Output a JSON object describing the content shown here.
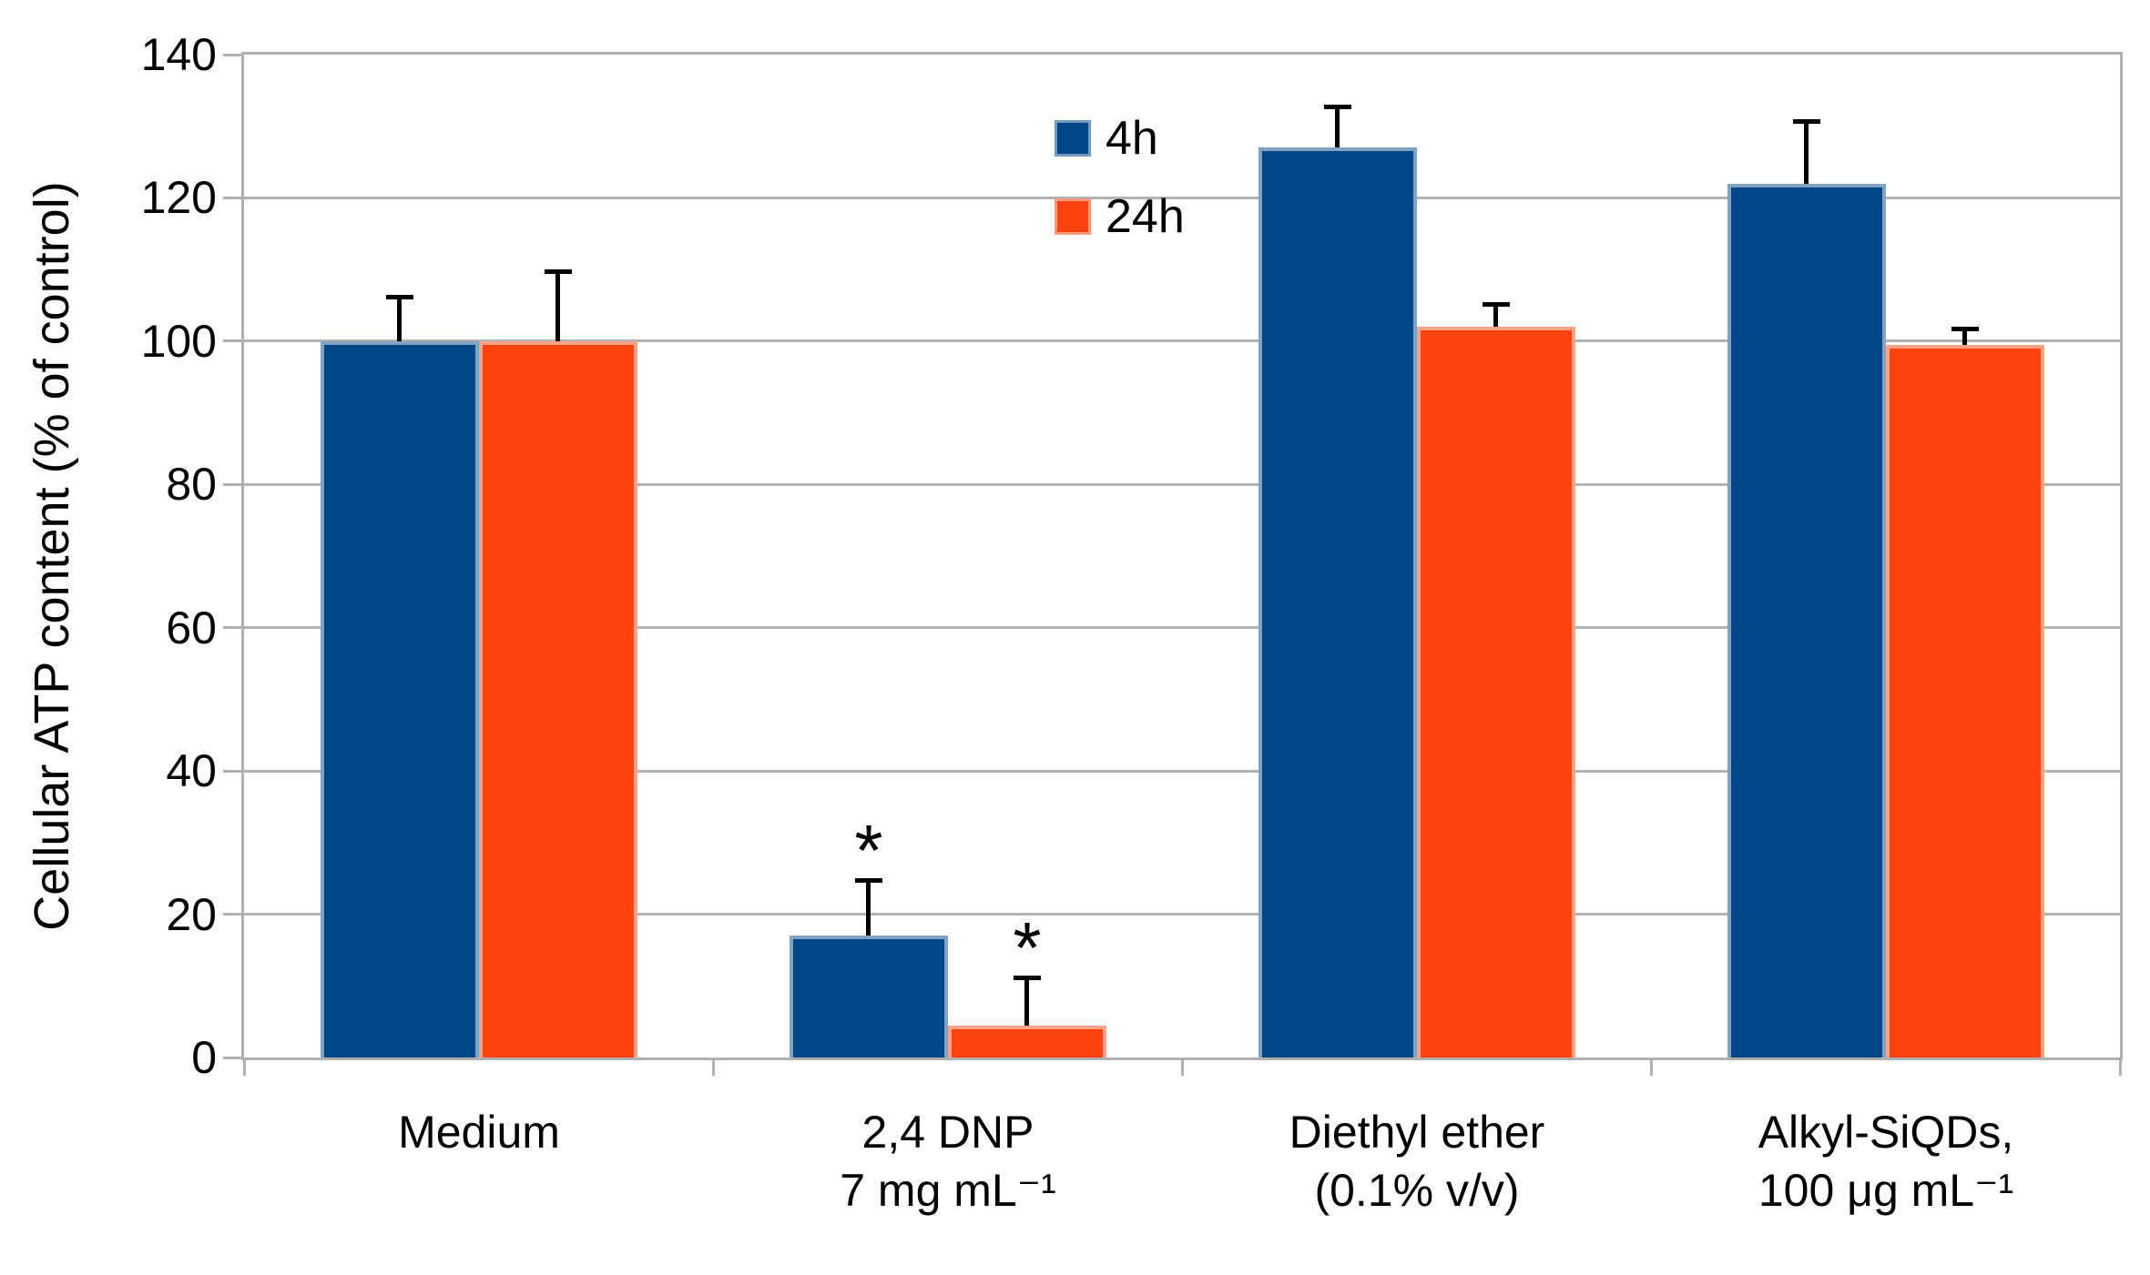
{
  "chart_data": {
    "type": "bar",
    "title": "",
    "ylabel": "Cellular ATP content (% of control)",
    "xlabel": "",
    "ylim": [
      0,
      140
    ],
    "ytick_labels": [
      0,
      20,
      40,
      60,
      80,
      100,
      120,
      140
    ],
    "grid": "horizontal",
    "legend_position": "top-center-inside",
    "categories": [
      {
        "lines": [
          "Medium"
        ]
      },
      {
        "lines": [
          "2,4 DNP",
          "7 mg mL⁻¹"
        ]
      },
      {
        "lines": [
          "Diethyl ether",
          "(0.1% v/v)"
        ]
      },
      {
        "lines": [
          "Alkyl-SiQDs,",
          "100 μg mL⁻¹"
        ]
      }
    ],
    "series": [
      {
        "name": "4h",
        "color": "#004586",
        "values": [
          100,
          17,
          127,
          122
        ],
        "errors_plus": [
          6.5,
          8,
          6,
          9
        ],
        "significance": [
          "",
          "*",
          "",
          ""
        ]
      },
      {
        "name": "24h",
        "color": "#FF420E",
        "values": [
          100,
          4.4,
          102,
          99.5
        ],
        "errors_plus": [
          10,
          7,
          3.5,
          2.5
        ],
        "significance": [
          "",
          "*",
          "",
          ""
        ]
      }
    ],
    "error_bar_color": "#000000",
    "gridline_color": "#b3b3b3",
    "axis_color": "#b0b0b0",
    "significance_marker": "*"
  }
}
